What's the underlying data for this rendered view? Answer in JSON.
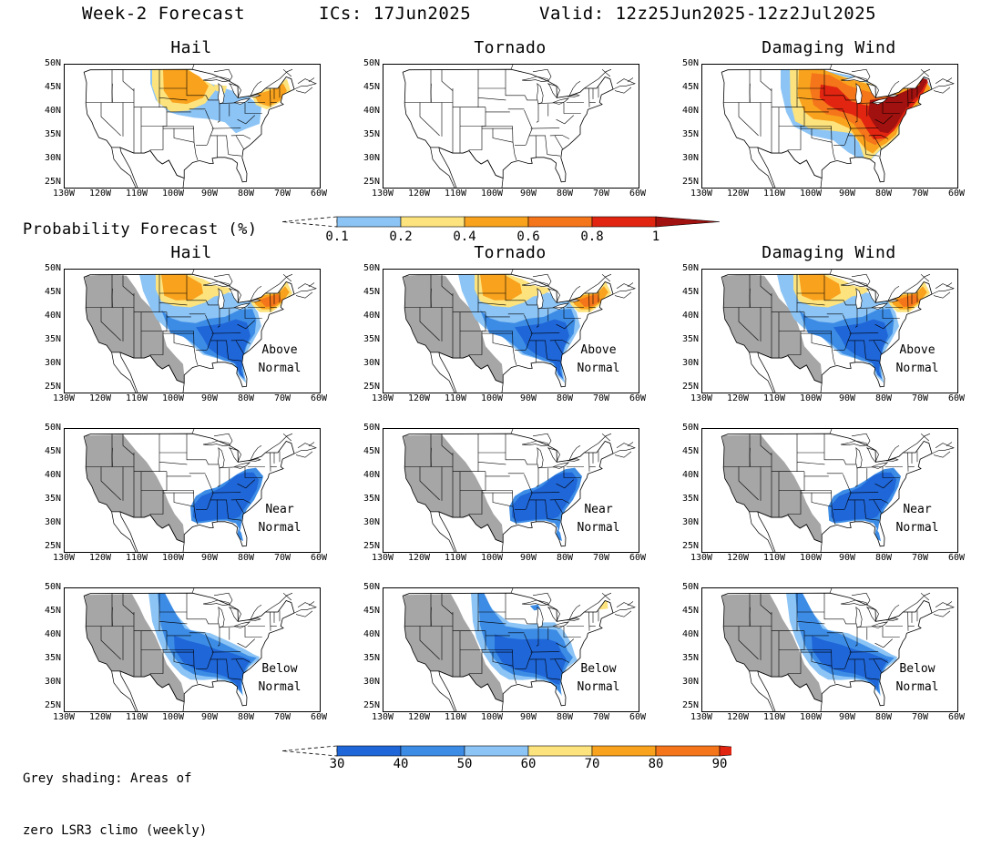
{
  "header": {
    "title": "Week-2 Forecast",
    "ics": "ICs: 17Jun2025",
    "valid": "Valid: 12z25Jun2025-12z2Jul2025"
  },
  "columns": [
    "Hail",
    "Tornado",
    "Damaging Wind"
  ],
  "prob_section": {
    "label": "Probability Forecast (%)",
    "colorbar": {
      "labels": [
        "0.1",
        "0.2",
        "0.4",
        "0.6",
        "0.8",
        "1"
      ],
      "colors": [
        "#8cc4f5",
        "#fde37d",
        "#f9a21d",
        "#f5751b",
        "#e12510",
        "#a1110f"
      ]
    }
  },
  "anomaly_section": {
    "rows": [
      {
        "annotation_line1": "Above",
        "annotation_line2": "Normal"
      },
      {
        "annotation_line1": "Near",
        "annotation_line2": "Normal"
      },
      {
        "annotation_line1": "Below",
        "annotation_line2": "Normal"
      }
    ],
    "colorbar": {
      "labels": [
        "30",
        "40",
        "50",
        "60",
        "70",
        "80",
        "90"
      ],
      "colors": [
        "#1f66d8",
        "#3c8ce6",
        "#8cc4f5",
        "#fde37d",
        "#f9a21d",
        "#f5751b",
        "#e12510"
      ]
    }
  },
  "axes": {
    "lat_labels": [
      "50N",
      "45N",
      "40N",
      "35N",
      "30N",
      "25N"
    ],
    "lon_labels": [
      "130W",
      "120W",
      "110W",
      "100W",
      "90W",
      "80W",
      "70W",
      "60W"
    ]
  },
  "footnote": {
    "line1": "Grey shading: Areas of",
    "line2": "zero LSR3 climo (weekly)"
  },
  "colors": {
    "grey": "#a6a6a6",
    "blue_dark": "#1f66d8",
    "blue_mid": "#3c8ce6",
    "blue_light": "#8cc4f5",
    "yellow": "#fde37d",
    "orange": "#f9a21d",
    "orange_red": "#f5751b",
    "red": "#e12510",
    "dark_red": "#a1110f"
  }
}
